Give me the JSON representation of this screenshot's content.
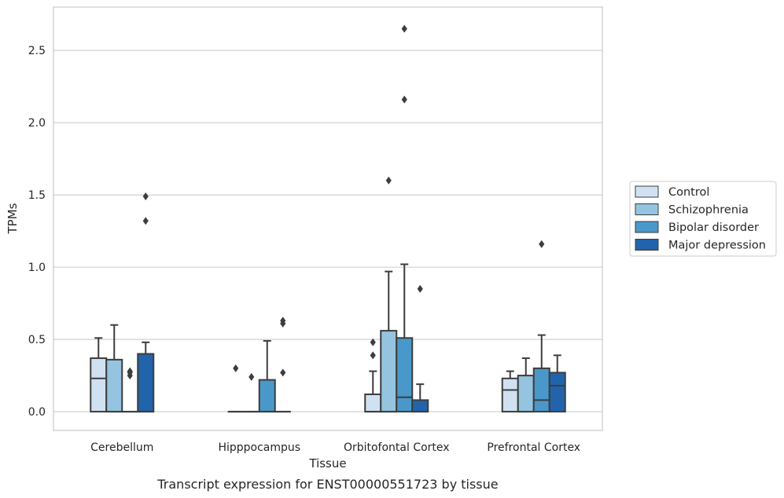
{
  "chart_data": {
    "type": "boxplot",
    "caption": "Transcript expression for ENST00000551723 by tissue",
    "xlabel": "Tissue",
    "ylabel": "TPMs",
    "ylim": [
      -0.13,
      2.8
    ],
    "yticks": [
      0.0,
      0.5,
      1.0,
      1.5,
      2.0,
      2.5
    ],
    "ytick_labels": [
      "0.0",
      "0.5",
      "1.0",
      "1.5",
      "2.0",
      "2.5"
    ],
    "grid": "horizontal",
    "legend_position": "outside-right",
    "categories": [
      "Cerebellum",
      "Hipppocampus",
      "Orbitofontal Cortex",
      "Prefrontal Cortex"
    ],
    "series": [
      {
        "name": "Control",
        "color": "#d0e1f2",
        "boxes": [
          {
            "q1": 0.0,
            "median": 0.23,
            "q3": 0.37,
            "whisker_low": 0.0,
            "whisker_high": 0.51,
            "outliers": []
          },
          {
            "q1": 0.0,
            "median": 0.0,
            "q3": 0.0,
            "whisker_low": 0.0,
            "whisker_high": 0.0,
            "outliers": [
              0.3
            ]
          },
          {
            "q1": 0.0,
            "median": 0.0,
            "q3": 0.12,
            "whisker_low": 0.0,
            "whisker_high": 0.28,
            "outliers": [
              0.39,
              0.48
            ]
          },
          {
            "q1": 0.0,
            "median": 0.15,
            "q3": 0.23,
            "whisker_low": 0.0,
            "whisker_high": 0.28,
            "outliers": []
          }
        ]
      },
      {
        "name": "Schizophrenia",
        "color": "#94c4df",
        "boxes": [
          {
            "q1": 0.0,
            "median": 0.0,
            "q3": 0.36,
            "whisker_low": 0.0,
            "whisker_high": 0.6,
            "outliers": []
          },
          {
            "q1": 0.0,
            "median": 0.0,
            "q3": 0.0,
            "whisker_low": 0.0,
            "whisker_high": 0.0,
            "outliers": [
              0.24
            ]
          },
          {
            "q1": 0.0,
            "median": 0.0,
            "q3": 0.56,
            "whisker_low": 0.0,
            "whisker_high": 0.97,
            "outliers": [
              1.6
            ]
          },
          {
            "q1": 0.0,
            "median": 0.0,
            "q3": 0.25,
            "whisker_low": 0.0,
            "whisker_high": 0.37,
            "outliers": []
          }
        ]
      },
      {
        "name": "Bipolar disorder",
        "color": "#4a98c9",
        "boxes": [
          {
            "q1": 0.0,
            "median": 0.0,
            "q3": 0.0,
            "whisker_low": 0.0,
            "whisker_high": 0.0,
            "outliers": [
              0.25,
              0.27,
              0.28
            ]
          },
          {
            "q1": 0.0,
            "median": 0.0,
            "q3": 0.22,
            "whisker_low": 0.0,
            "whisker_high": 0.49,
            "outliers": []
          },
          {
            "q1": 0.0,
            "median": 0.1,
            "q3": 0.51,
            "whisker_low": 0.0,
            "whisker_high": 1.02,
            "outliers": [
              2.16,
              2.65
            ]
          },
          {
            "q1": 0.0,
            "median": 0.08,
            "q3": 0.3,
            "whisker_low": 0.0,
            "whisker_high": 0.53,
            "outliers": [
              1.16
            ]
          }
        ]
      },
      {
        "name": "Major depression",
        "color": "#2164ab",
        "boxes": [
          {
            "q1": 0.0,
            "median": 0.0,
            "q3": 0.4,
            "whisker_low": 0.0,
            "whisker_high": 0.48,
            "outliers": [
              1.32,
              1.49
            ]
          },
          {
            "q1": 0.0,
            "median": 0.0,
            "q3": 0.0,
            "whisker_low": 0.0,
            "whisker_high": 0.0,
            "outliers": [
              0.27,
              0.61,
              0.63
            ]
          },
          {
            "q1": 0.0,
            "median": 0.0,
            "q3": 0.08,
            "whisker_low": 0.0,
            "whisker_high": 0.19,
            "outliers": [
              0.85
            ]
          },
          {
            "q1": 0.0,
            "median": 0.18,
            "q3": 0.27,
            "whisker_low": 0.0,
            "whisker_high": 0.39,
            "outliers": []
          }
        ]
      }
    ]
  }
}
